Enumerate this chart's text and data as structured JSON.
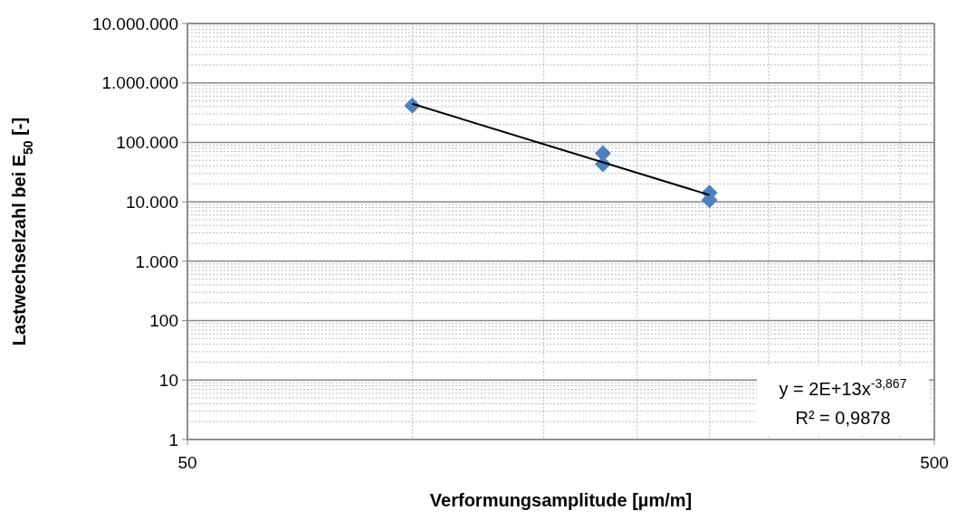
{
  "chart_data": {
    "type": "scatter",
    "xlabel": "Verformungsamplitude [µm/m]",
    "ylabel": "Lastwechselzahl bei E$_{50}$ [-]",
    "log": "xy",
    "grid": true,
    "marker": "diamond",
    "xlim": [
      50,
      500
    ],
    "xticks": [
      50,
      500
    ],
    "ylim": [
      1,
      10000000
    ],
    "yticks": [
      {
        "value": 1,
        "label": "1"
      },
      {
        "value": 10,
        "label": "10"
      },
      {
        "value": 100,
        "label": "100"
      },
      {
        "value": 1000,
        "label": "1.000"
      },
      {
        "value": 10000,
        "label": "10.000"
      },
      {
        "value": 100000,
        "label": "100.000"
      },
      {
        "value": 1000000,
        "label": "1.000.000"
      },
      {
        "value": 10000000,
        "label": "10.000.000"
      }
    ],
    "series": [
      {
        "color": "#4f81bd",
        "x": [
          100,
          180,
          180,
          250,
          250
        ],
        "values": [
          415000,
          65600,
          43000,
          14200,
          10700
        ]
      },
      {
        "type": "line",
        "color": "#000000",
        "marker": "none",
        "x": [
          100,
          250
        ],
        "values": [
          446000,
          13000
        ]
      }
    ],
    "annotations": [
      "y = 2E+13x$^{-3,867}$",
      "R² = 0,9878"
    ]
  }
}
